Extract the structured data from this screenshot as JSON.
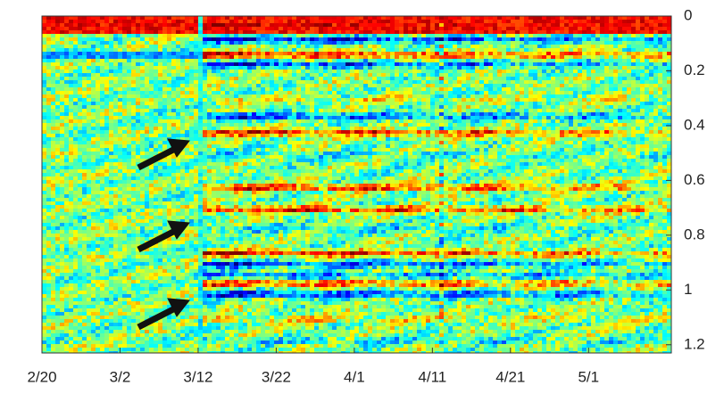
{
  "chart_data": {
    "type": "heatmap",
    "xlim": [
      0,
      80.6
    ],
    "xticks": [
      {
        "value": 0,
        "label": "2/20"
      },
      {
        "value": 10,
        "label": "3/2"
      },
      {
        "value": 20,
        "label": "3/12"
      },
      {
        "value": 30,
        "label": "3/22"
      },
      {
        "value": 40,
        "label": "4/1"
      },
      {
        "value": 50,
        "label": "4/11"
      },
      {
        "value": 60,
        "label": "4/21"
      },
      {
        "value": 70,
        "label": "5/1"
      }
    ],
    "ylim": [
      0,
      1.23
    ],
    "yticks": [
      0,
      0.2,
      0.4,
      0.6,
      0.8,
      1,
      1.2
    ]
  }
}
